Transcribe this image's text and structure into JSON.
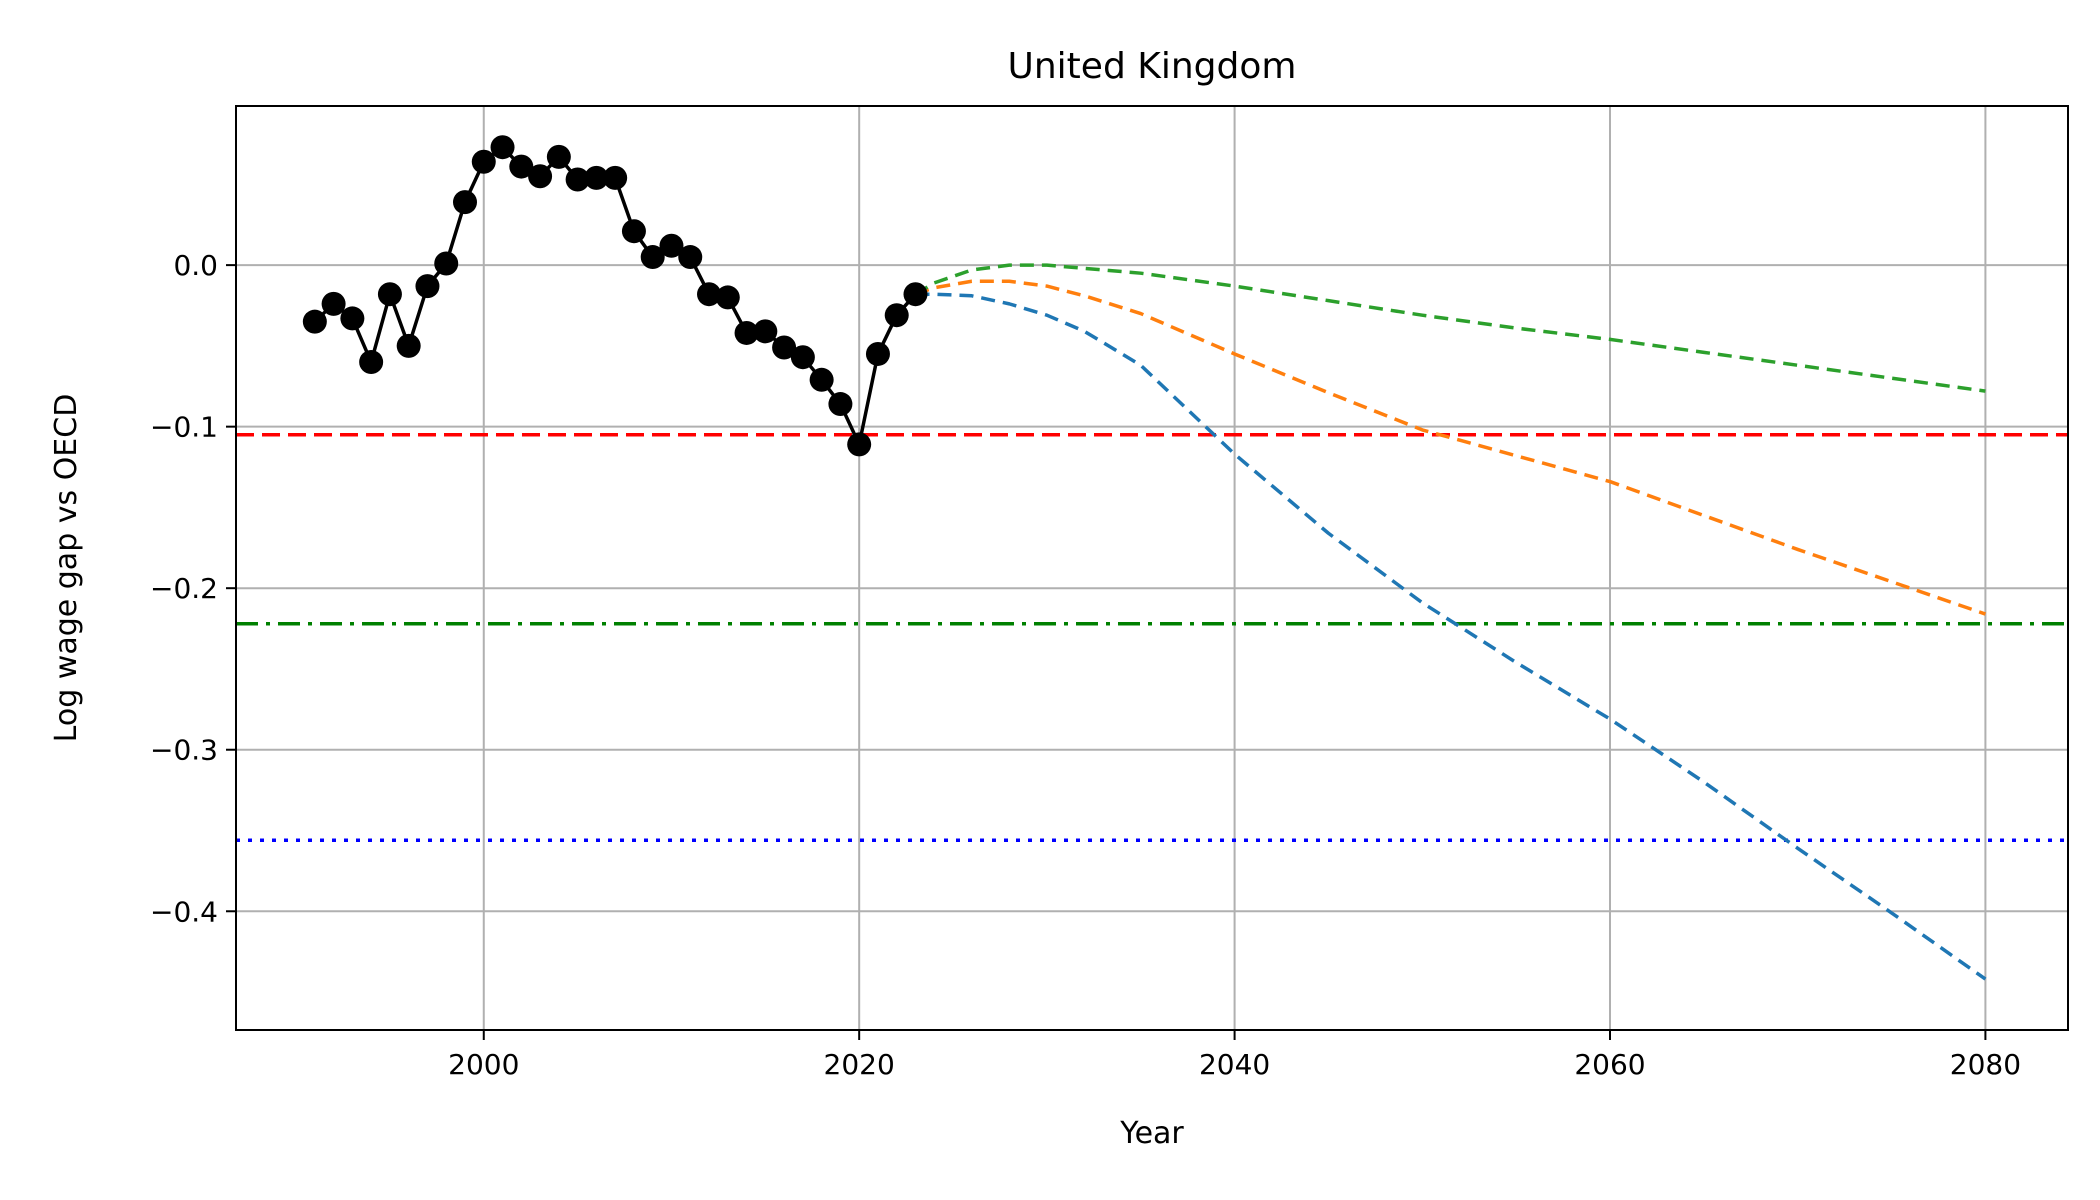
{
  "chart_data": {
    "type": "line",
    "title": "United Kingdom",
    "xlabel": "Year",
    "ylabel": "Log wage gap vs OECD",
    "xlim": [
      1986.8,
      2084.4
    ],
    "ylim": [
      -0.4735,
      0.0985
    ],
    "xticks": [
      2000,
      2020,
      2040,
      2060,
      2080
    ],
    "yticks": [
      0.0,
      -0.1,
      -0.2,
      -0.3,
      -0.4
    ],
    "xtick_labels": [
      "2000",
      "2020",
      "2040",
      "2060",
      "2080"
    ],
    "ytick_labels": [
      "0.0",
      "−0.1",
      "−0.2",
      "−0.3",
      "−0.4"
    ],
    "grid": true,
    "historical": {
      "color": "#000000",
      "x": [
        1991,
        1992,
        1993,
        1994,
        1995,
        1996,
        1997,
        1998,
        1999,
        2000,
        2001,
        2002,
        2003,
        2004,
        2005,
        2006,
        2007,
        2008,
        2009,
        2010,
        2011,
        2012,
        2013,
        2014,
        2015,
        2016,
        2017,
        2018,
        2019,
        2020,
        2021,
        2022,
        2023
      ],
      "y": [
        -0.035,
        -0.024,
        -0.033,
        -0.06,
        -0.018,
        -0.05,
        -0.013,
        0.001,
        0.039,
        0.064,
        0.073,
        0.061,
        0.055,
        0.067,
        0.053,
        0.054,
        0.054,
        0.021,
        0.005,
        0.012,
        0.005,
        -0.018,
        -0.02,
        -0.042,
        -0.041,
        -0.051,
        -0.057,
        -0.071,
        -0.086,
        -0.111,
        -0.055,
        -0.031,
        -0.018
      ]
    },
    "projections": [
      {
        "color": "#1f77b4",
        "x": [
          2023,
          2024,
          2026,
          2028,
          2030,
          2032,
          2035,
          2040,
          2045,
          2050,
          2055,
          2060,
          2065,
          2070,
          2075,
          2080
        ],
        "y": [
          -0.018,
          -0.018,
          -0.019,
          -0.024,
          -0.031,
          -0.041,
          -0.062,
          -0.117,
          -0.166,
          -0.209,
          -0.246,
          -0.281,
          -0.32,
          -0.361,
          -0.401,
          -0.442
        ]
      },
      {
        "color": "#ff7f0e",
        "x": [
          2023,
          2024,
          2026,
          2028,
          2030,
          2032,
          2035,
          2040,
          2045,
          2050,
          2055,
          2060,
          2065,
          2070,
          2075,
          2080
        ],
        "y": [
          -0.018,
          -0.014,
          -0.01,
          -0.01,
          -0.013,
          -0.019,
          -0.03,
          -0.055,
          -0.079,
          -0.102,
          -0.118,
          -0.134,
          -0.155,
          -0.176,
          -0.196,
          -0.216
        ]
      },
      {
        "color": "#2ca02c",
        "x": [
          2023,
          2024,
          2026,
          2028,
          2030,
          2032,
          2035,
          2040,
          2045,
          2050,
          2055,
          2060,
          2065,
          2070,
          2075,
          2080
        ],
        "y": [
          -0.018,
          -0.011,
          -0.003,
          0.0,
          0.0,
          -0.002,
          -0.005,
          -0.013,
          -0.022,
          -0.031,
          -0.039,
          -0.046,
          -0.054,
          -0.062,
          -0.07,
          -0.078
        ]
      }
    ],
    "reference_lines": [
      {
        "y": -0.105,
        "color": "#ff0000",
        "style": "dashed"
      },
      {
        "y": -0.222,
        "color": "#008000",
        "style": "dashdot"
      },
      {
        "y": -0.356,
        "color": "#0000ff",
        "style": "dotted"
      }
    ]
  }
}
